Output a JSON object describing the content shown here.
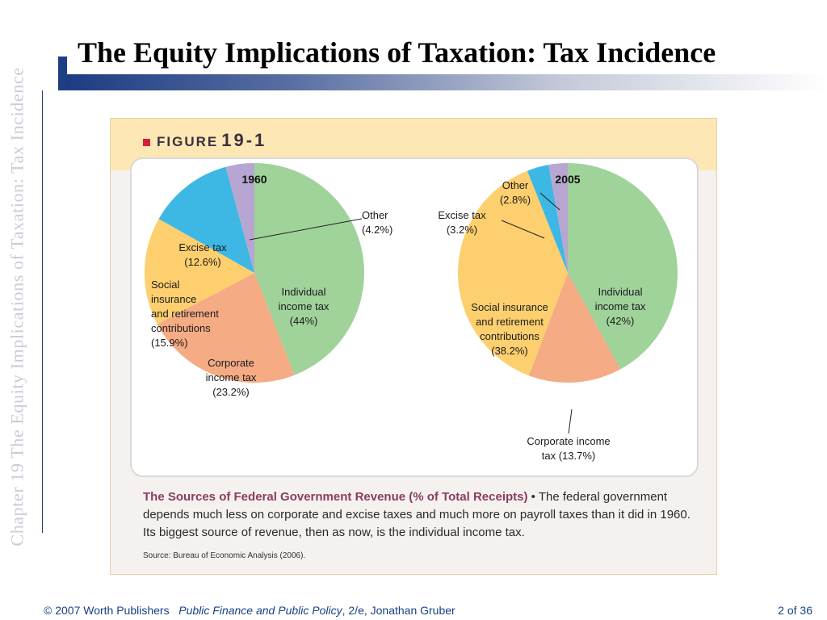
{
  "slide": {
    "title": "The Equity Implications of Taxation: Tax Incidence",
    "side_text": "Chapter 19  The Equity Implications of Taxation: Tax Incidence"
  },
  "figure": {
    "label": "FIGURE",
    "number": "19-1",
    "caption_title": "The Sources of Federal Government Revenue (% of Total Receipts)",
    "caption_bullet": " • ",
    "caption_text": "The federal government depends much less on corporate and excise taxes and much more on payroll taxes than it did in 1960. Its biggest source of revenue, then as now, is the individual income tax.",
    "source": "Source: Bureau of Economic Analysis (2006)."
  },
  "chart_data": [
    {
      "type": "pie",
      "title": "1960",
      "slices": [
        {
          "label": [
            "Individual",
            "income tax",
            "(44%)"
          ],
          "value": 44,
          "color": "#9fd39a"
        },
        {
          "label": [
            "Corporate",
            "income tax",
            "(23.2%)"
          ],
          "value": 23.2,
          "color": "#f5ab84"
        },
        {
          "label": [
            "Social",
            "insurance",
            "and retirement",
            "contributions",
            "(15.9%)"
          ],
          "value": 15.9,
          "color": "#fdcf6e"
        },
        {
          "label": [
            "Excise tax",
            "(12.6%)"
          ],
          "value": 12.6,
          "color": "#3db7e4"
        },
        {
          "label": [
            "Other",
            "(4.2%)"
          ],
          "value": 4.2,
          "color": "#b7a6d1"
        }
      ]
    },
    {
      "type": "pie",
      "title": "2005",
      "slices": [
        {
          "label": [
            "Individual",
            "income tax",
            "(42%)"
          ],
          "value": 42,
          "color": "#9fd39a"
        },
        {
          "label": [
            "Corporate income",
            "tax (13.7%)"
          ],
          "value": 13.7,
          "color": "#f5ab84"
        },
        {
          "label": [
            "Social insurance",
            "and retirement",
            "contributions",
            "(38.2%)"
          ],
          "value": 38.2,
          "color": "#fdcf6e"
        },
        {
          "label": [
            "Excise tax",
            "(3.2%)"
          ],
          "value": 3.2,
          "color": "#3db7e4"
        },
        {
          "label": [
            "Other",
            "(2.8%)"
          ],
          "value": 2.8,
          "color": "#b7a6d1"
        }
      ]
    }
  ],
  "footer": {
    "copyright": "© 2007 Worth Publishers",
    "book": "Public Finance and Public Policy",
    "edition": ", 2/e, Jonathan Gruber",
    "page": "2 of 36"
  }
}
